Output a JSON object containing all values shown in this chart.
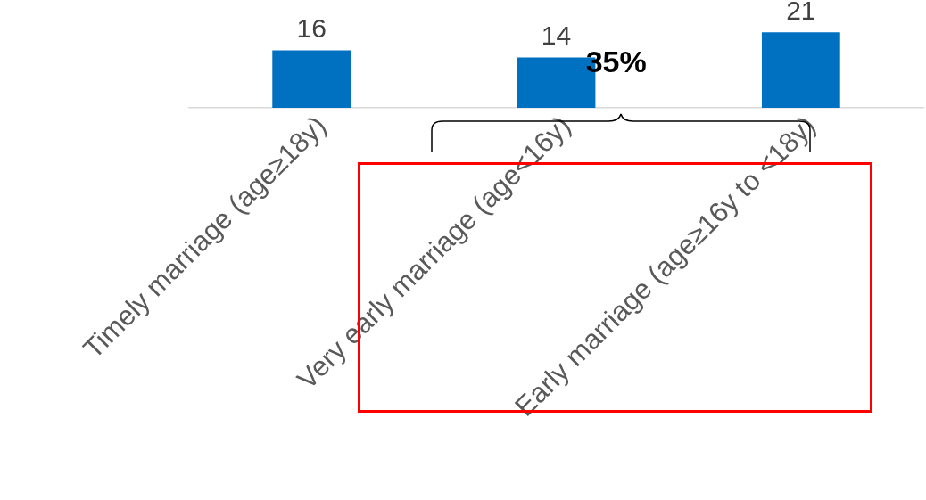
{
  "chart_data": {
    "type": "bar",
    "categories": [
      "Timely marriage (age≥18y)",
      "Very early marriage (age<16y)",
      "Early marriage (age≥16y to <18y)"
    ],
    "values": [
      16,
      14,
      21
    ],
    "color": "#0070c0",
    "data_labels": true,
    "annotations": [
      "35%"
    ]
  }
}
